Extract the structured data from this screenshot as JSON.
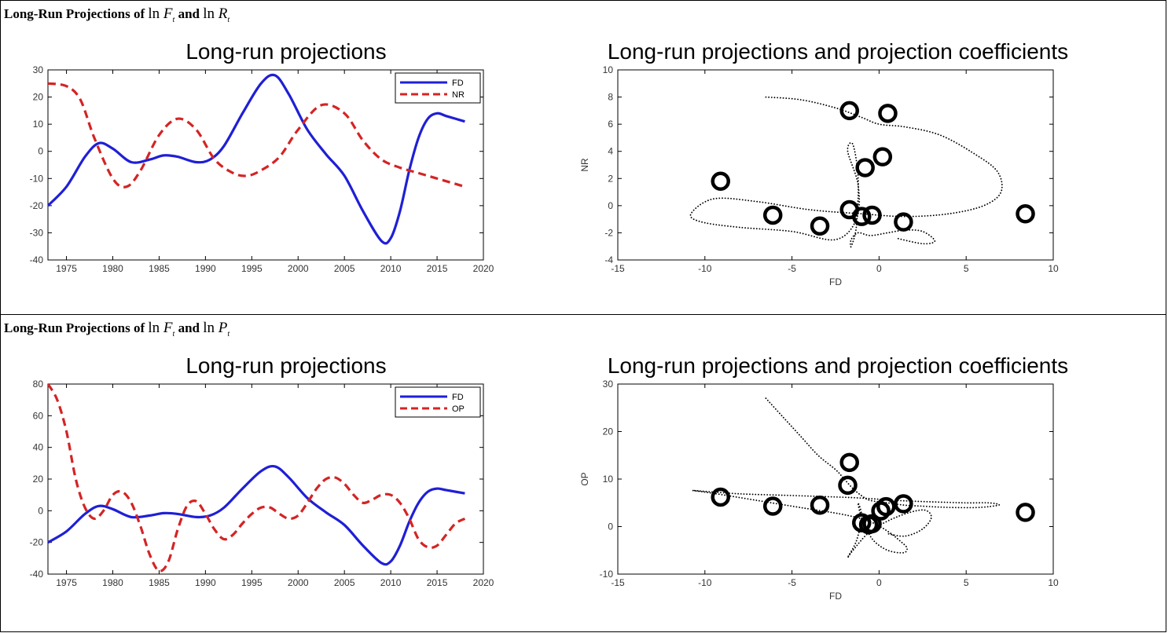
{
  "panels": [
    {
      "heading": {
        "prefix": "Long-Run Projections of",
        "var1": "F",
        "conj": "and",
        "var2": "R",
        "sub": "t"
      },
      "chart_data": [
        {
          "type": "line",
          "title": "Long-run projections",
          "xlabel": "",
          "ylabel": "",
          "xlim": [
            1973,
            2020
          ],
          "ylim": [
            -40,
            30
          ],
          "xticks": [
            1975,
            1980,
            1985,
            1990,
            1995,
            2000,
            2005,
            2010,
            2015,
            2020
          ],
          "yticks": [
            -40,
            -30,
            -20,
            -10,
            0,
            10,
            20,
            30
          ],
          "legend": "top-right",
          "series": [
            {
              "name": "FD",
              "color": "#1f1fd6",
              "style": "solid",
              "x": [
                1973,
                1975,
                1977,
                1978.5,
                1980,
                1982,
                1984,
                1985.5,
                1987,
                1989,
                1990.5,
                1992,
                1994,
                1996,
                1997.5,
                1999,
                2001,
                2003,
                2005,
                2007,
                2009,
                2010,
                2011,
                2012,
                2013,
                2014,
                2015,
                2016,
                2018
              ],
              "y": [
                -20,
                -13,
                -2,
                3,
                1,
                -4,
                -3,
                -1.5,
                -2,
                -4,
                -3,
                2,
                14,
                25,
                28,
                21,
                8,
                -1,
                -9,
                -22,
                -33,
                -32,
                -22,
                -7,
                5,
                12,
                14,
                13,
                11
              ]
            },
            {
              "name": "NR",
              "color": "#d42424",
              "style": "dashed",
              "x": [
                1973,
                1975,
                1976.5,
                1978,
                1980,
                1981.5,
                1983,
                1985,
                1987,
                1989,
                1991,
                1993,
                1994.5,
                1996,
                1998,
                2000,
                2002.5,
                2005,
                2007,
                2009,
                2011,
                2013,
                2015,
                2018
              ],
              "y": [
                25,
                24,
                19,
                5,
                -10,
                -13,
                -7,
                6,
                12,
                8,
                -3,
                -8,
                -9,
                -7,
                -2,
                8,
                17,
                14,
                4,
                -3,
                -6,
                -8,
                -10,
                -13
              ]
            }
          ]
        },
        {
          "type": "scatter",
          "title": "Long-run projections and projection coefficients",
          "xlabel": "FD",
          "ylabel": "NR",
          "xlim": [
            -15,
            10
          ],
          "ylim": [
            -4,
            10
          ],
          "xticks": [
            -15,
            -10,
            -5,
            0,
            5,
            10
          ],
          "yticks": [
            -4,
            -2,
            0,
            2,
            4,
            6,
            8,
            10
          ],
          "trajectory": {
            "x": [
              -6.5,
              -4.5,
              -2.5,
              -1.0,
              0.0,
              1.5,
              3.5,
              5.5,
              6.8,
              7.0,
              6.0,
              4.0,
              1.5,
              -1.0,
              -4.0,
              -7.0,
              -9.5,
              -10.8,
              -10.2,
              -8.0,
              -5.0,
              -2.5,
              -1.3,
              -1.2,
              -1.8,
              -1.5,
              -1.2,
              -1.3,
              -1.6,
              -1.6,
              -1.2,
              -0.5,
              0.5,
              1.5,
              2.5,
              3.2,
              2.5,
              1.0
            ],
            "y": [
              8.0,
              7.8,
              7.2,
              6.5,
              6.0,
              5.8,
              5.2,
              3.8,
              2.5,
              1.0,
              0.0,
              -0.6,
              -0.8,
              -0.6,
              -0.3,
              0.3,
              0.5,
              -0.6,
              -1.2,
              -1.6,
              -1.9,
              -2.5,
              -1.0,
              1.5,
              4.0,
              4.5,
              2.0,
              -1.5,
              -3.0,
              -2.5,
              -2.0,
              -2.2,
              -2.0,
              -1.8,
              -1.9,
              -2.6,
              -2.8,
              -2.4
            ]
          },
          "points": [
            {
              "x": -9.1,
              "y": 1.8
            },
            {
              "x": -6.1,
              "y": -0.7
            },
            {
              "x": -3.4,
              "y": -1.5
            },
            {
              "x": -1.7,
              "y": 7.0
            },
            {
              "x": 0.5,
              "y": 6.8
            },
            {
              "x": 0.2,
              "y": 3.6
            },
            {
              "x": -0.8,
              "y": 2.8
            },
            {
              "x": -1.7,
              "y": -0.3
            },
            {
              "x": -1.0,
              "y": -0.8
            },
            {
              "x": -0.4,
              "y": -0.7
            },
            {
              "x": 1.4,
              "y": -1.2
            },
            {
              "x": 8.4,
              "y": -0.6
            }
          ]
        }
      ]
    },
    {
      "heading": {
        "prefix": "Long-Run Projections of",
        "var1": "F",
        "conj": "and",
        "var2": "P",
        "sub": "t"
      },
      "chart_data": [
        {
          "type": "line",
          "title": "Long-run projections",
          "xlabel": "",
          "ylabel": "",
          "xlim": [
            1973,
            2020
          ],
          "ylim": [
            -40,
            80
          ],
          "xticks": [
            1975,
            1980,
            1985,
            1990,
            1995,
            2000,
            2005,
            2010,
            2015,
            2020
          ],
          "yticks": [
            -40,
            -20,
            0,
            20,
            40,
            60,
            80
          ],
          "legend": "top-right",
          "series": [
            {
              "name": "FD",
              "color": "#1f1fd6",
              "style": "solid",
              "x": [
                1973,
                1975,
                1977,
                1978.5,
                1980,
                1982,
                1984,
                1985.5,
                1987,
                1989,
                1990.5,
                1992,
                1994,
                1996,
                1997.5,
                1999,
                2001,
                2003,
                2005,
                2007,
                2009,
                2010,
                2011,
                2012,
                2013,
                2014,
                2015,
                2016,
                2018
              ],
              "y": [
                -20,
                -13,
                -2,
                3,
                1,
                -4,
                -3,
                -1.5,
                -2,
                -4,
                -3,
                2,
                14,
                25,
                28,
                21,
                8,
                -1,
                -9,
                -22,
                -33,
                -32,
                -22,
                -7,
                5,
                12,
                14,
                13,
                11
              ]
            },
            {
              "name": "OP",
              "color": "#d42424",
              "style": "dashed",
              "x": [
                1973,
                1974,
                1975,
                1976,
                1977,
                1978,
                1979,
                1980,
                1981,
                1982,
                1983,
                1984,
                1985,
                1986,
                1987,
                1988,
                1989,
                1990,
                1991,
                1992,
                1993,
                1994,
                1995,
                1996,
                1997,
                1998,
                1999,
                2000,
                2001,
                2002,
                2003,
                2004,
                2005,
                2006,
                2007,
                2008,
                2009,
                2010,
                2011,
                2012,
                2013,
                2014,
                2015,
                2016,
                2017,
                2018
              ],
              "y": [
                80,
                70,
                50,
                20,
                2,
                -5,
                0,
                10,
                12,
                5,
                -10,
                -28,
                -38,
                -32,
                -12,
                3,
                6,
                -2,
                -12,
                -18,
                -15,
                -8,
                -2,
                2,
                2,
                -2,
                -5,
                -3,
                5,
                14,
                20,
                21,
                17,
                10,
                5,
                7,
                10,
                10,
                5,
                -5,
                -18,
                -23,
                -22,
                -15,
                -8,
                -5
              ]
            }
          ]
        },
        {
          "type": "scatter",
          "title": "Long-run projections and projection coefficients",
          "xlabel": "FD",
          "ylabel": "OP",
          "xlim": [
            -15,
            10
          ],
          "ylim": [
            -10,
            30
          ],
          "xticks": [
            -15,
            -10,
            -5,
            0,
            5,
            10
          ],
          "yticks": [
            -10,
            0,
            10,
            20,
            30
          ],
          "trajectory": {
            "x": [
              -6.5,
              -5.5,
              -4.5,
              -3.5,
              -2.5,
              -2.0,
              -1.5,
              -1.0,
              -0.5,
              0.5,
              1.5,
              2.5,
              3.5,
              4.5,
              5.5,
              6.3,
              6.9,
              6.3,
              5.0,
              3.0,
              1.0,
              -1.0,
              -3.0,
              -5.5,
              -8.0,
              -10.0,
              -10.7,
              -9.5,
              -7.0,
              -4.5,
              -2.0,
              -0.5,
              0.5,
              1.2,
              1.6,
              1.4,
              0.5,
              -0.3,
              -0.8,
              -1.1,
              -1.2,
              -1.0,
              -1.3,
              -1.8,
              -1.5,
              -0.5,
              1.0,
              2.5,
              3.0,
              2.5,
              1.5,
              0.5
            ],
            "y": [
              27,
              23,
              19,
              15,
              12,
              10,
              8,
              6.5,
              5.5,
              5,
              4.5,
              4.3,
              4.1,
              4.0,
              4.0,
              4.2,
              4.6,
              5.0,
              5.0,
              5.2,
              5.5,
              6.0,
              6.3,
              6.6,
              6.9,
              7.4,
              7.6,
              7.0,
              5.5,
              4.0,
              2.5,
              1.0,
              -1.0,
              -3.0,
              -4.5,
              -5.5,
              -5.0,
              -3.0,
              0.0,
              3.0,
              5.0,
              2.0,
              -3.0,
              -6.5,
              -5.0,
              -1.0,
              2.0,
              3.5,
              2.0,
              -0.5,
              -2.0,
              -1.5
            ]
          },
          "points": [
            {
              "x": -9.1,
              "y": 6.2
            },
            {
              "x": -6.1,
              "y": 4.3
            },
            {
              "x": -3.4,
              "y": 4.5
            },
            {
              "x": -1.7,
              "y": 13.5
            },
            {
              "x": -1.8,
              "y": 8.7
            },
            {
              "x": 1.4,
              "y": 4.8
            },
            {
              "x": 0.4,
              "y": 4.2
            },
            {
              "x": 0.1,
              "y": 3.3
            },
            {
              "x": -1.0,
              "y": 0.8
            },
            {
              "x": -0.6,
              "y": 0.4
            },
            {
              "x": -0.4,
              "y": 0.6
            },
            {
              "x": 8.4,
              "y": 3.0
            }
          ]
        }
      ]
    }
  ]
}
